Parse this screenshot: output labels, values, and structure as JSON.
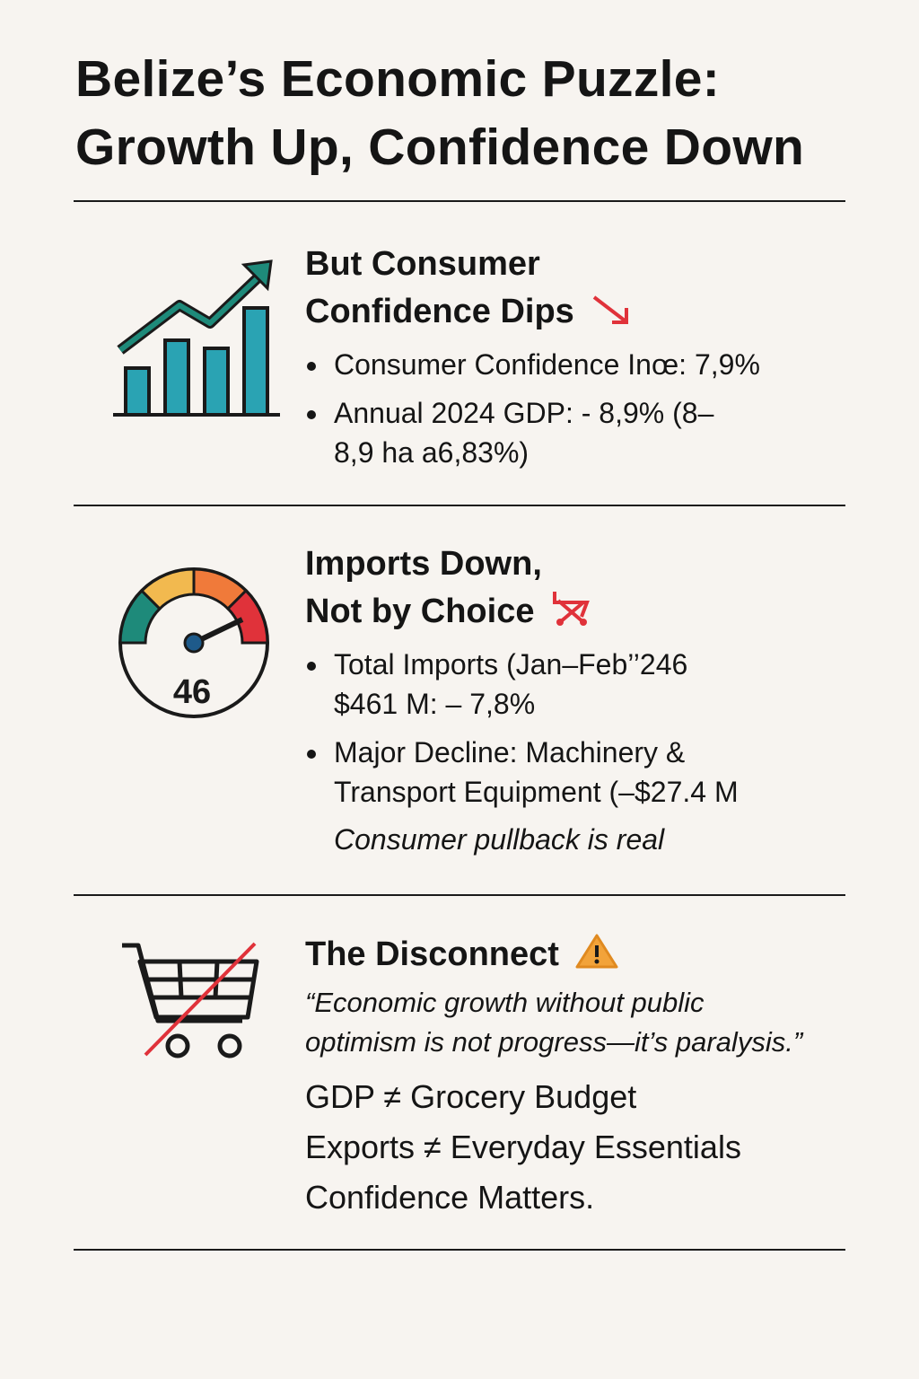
{
  "title": {
    "line1": "Belize’s Economic Puzzle:",
    "line2": "Growth Up, Confidence Down"
  },
  "colors": {
    "background": "#f7f4f0",
    "teal": "#2aa3b3",
    "green": "#1e8a7a",
    "red": "#e0323a",
    "orange": "#f08a3a",
    "yellow": "#f2b94f"
  },
  "section1": {
    "icon": "growth-bar-chart-icon",
    "heading_line1": "But Consumer",
    "heading_line2": "Confidence Dips",
    "heading_icon": "down-arrow-icon",
    "bullets": [
      "Consumer Confidence Inœ: 7,9%",
      "Annual 2024 GDP: - 8,9% (8–8,9 ha a6,83%)"
    ]
  },
  "section2": {
    "icon": "gauge-icon",
    "gauge_value": "46",
    "heading_line1": "Imports Down,",
    "heading_line2": "Not by Choice",
    "heading_icon": "cart-crossed-icon",
    "bullets": [
      "Total Imports (Jan–Feb’’246 $461 M: – 7,8%",
      "Major Decline: Machinery & Transport Equipment (–$27.4 M"
    ],
    "note": "Consumer pullback is real"
  },
  "section3": {
    "icon": "shopping-cart-crossed-icon",
    "heading": "The Disconnect",
    "heading_icon": "warning-icon",
    "quote_line1": "“Economic growth without public",
    "quote_line2": "optimism is not progress—it’s paralysis.”",
    "lines": [
      "GDP ≠ Grocery Budget",
      "Exports ≠ Everyday Essentials",
      "Confidence Matters."
    ]
  }
}
